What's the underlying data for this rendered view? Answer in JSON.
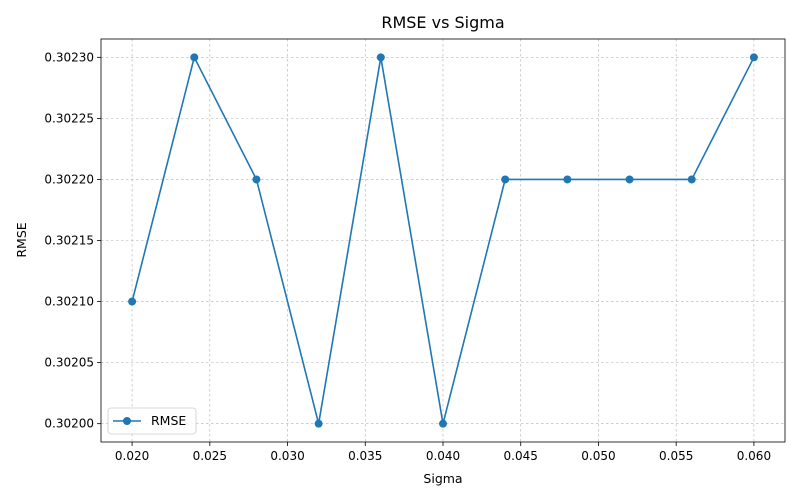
{
  "chart_data": {
    "type": "line",
    "title": "RMSE vs Sigma",
    "xlabel": "Sigma",
    "ylabel": "RMSE",
    "x": [
      0.02,
      0.024,
      0.028,
      0.032,
      0.036,
      0.04,
      0.044,
      0.048,
      0.052,
      0.056,
      0.06
    ],
    "series": [
      {
        "name": "RMSE",
        "color": "#1f77b4",
        "marker": "circle",
        "values": [
          0.3021,
          0.3023,
          0.3022,
          0.302,
          0.3023,
          0.302,
          0.3022,
          0.3022,
          0.3022,
          0.3022,
          0.3023
        ]
      }
    ],
    "xticks": [
      "0.020",
      "0.025",
      "0.030",
      "0.035",
      "0.040",
      "0.045",
      "0.050",
      "0.055",
      "0.060"
    ],
    "yticks": [
      "0.30200",
      "0.30205",
      "0.30210",
      "0.30215",
      "0.30220",
      "0.30225",
      "0.30230"
    ],
    "xlim": [
      0.018,
      0.062
    ],
    "ylim": [
      0.301985,
      0.302315
    ],
    "grid": true,
    "legend_position": "lower-left"
  }
}
